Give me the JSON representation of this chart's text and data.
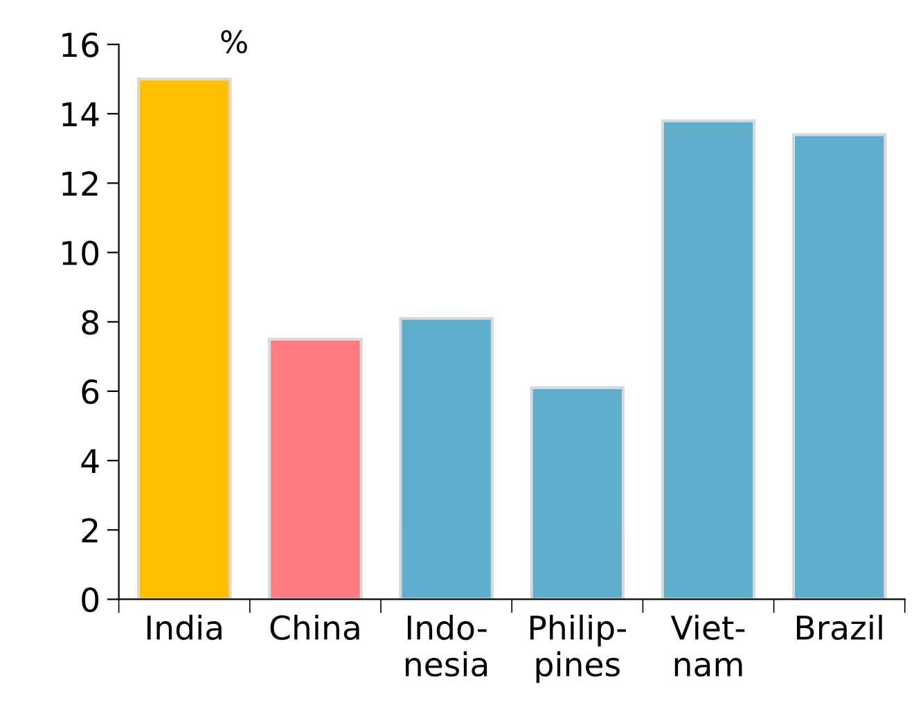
{
  "chart_data": {
    "type": "bar",
    "ylabel": "%",
    "categories": [
      "India",
      "China",
      "Indo-\nnesia",
      "Philip-\npines",
      "Viet-\nnam",
      "Brazil"
    ],
    "values": [
      15.0,
      7.5,
      8.1,
      6.1,
      13.8,
      13.4
    ],
    "colors": [
      "#ffc000",
      "#ff7c80",
      "#5eaecc",
      "#5eaecc",
      "#5eaecc",
      "#5eaecc"
    ],
    "ylim": [
      0,
      16
    ],
    "yticks": [
      0,
      2,
      4,
      6,
      8,
      10,
      12,
      14,
      16
    ],
    "grid": false,
    "legend": false
  }
}
